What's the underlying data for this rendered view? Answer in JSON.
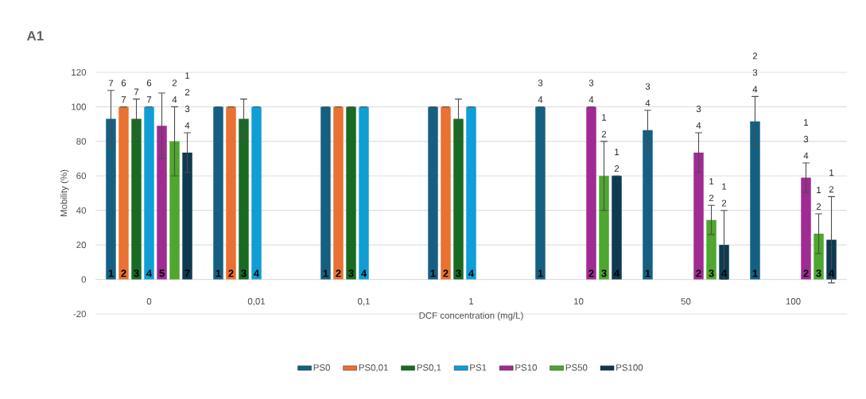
{
  "chart_data": {
    "type": "bar",
    "title": "A1",
    "xlabel": "DCF concentration (mg/L)",
    "ylabel": "Mobility (%)",
    "categories": [
      "0",
      "0,01",
      "0,1",
      "1",
      "10",
      "50",
      "100"
    ],
    "ylim": [
      -20,
      120
    ],
    "yticks": [
      -20,
      0,
      20,
      40,
      60,
      80,
      100,
      120
    ],
    "grid": "y",
    "legend": "bottom",
    "series": [
      {
        "name": "PS0",
        "color": "#156082",
        "values": [
          93,
          100,
          100,
          100,
          100,
          86.5,
          91.5
        ],
        "errors": [
          16.5,
          0,
          0,
          0,
          0,
          11.5,
          14.5
        ]
      },
      {
        "name": "PS0,01",
        "color": "#e97132",
        "values": [
          100,
          100,
          100,
          100,
          null,
          null,
          null
        ],
        "errors": [
          0,
          0,
          0,
          0,
          null,
          null,
          null
        ]
      },
      {
        "name": "PS0,1",
        "color": "#196b24",
        "values": [
          93,
          93,
          100,
          93,
          null,
          null,
          null
        ],
        "errors": [
          11.5,
          11.5,
          0,
          11.5,
          null,
          null,
          null
        ]
      },
      {
        "name": "PS1",
        "color": "#0f9ed5",
        "values": [
          100,
          100,
          100,
          100,
          null,
          null,
          null
        ],
        "errors": [
          0,
          0,
          0,
          0,
          null,
          null,
          null
        ]
      },
      {
        "name": "PS10",
        "color": "#a02b93",
        "values": [
          89,
          null,
          null,
          null,
          100,
          73.5,
          59
        ],
        "errors": [
          19,
          null,
          null,
          null,
          0,
          11.5,
          8.5
        ]
      },
      {
        "name": "PS50",
        "color": "#4ea72e",
        "values": [
          80,
          null,
          null,
          null,
          60,
          34.5,
          26.5
        ],
        "errors": [
          20,
          null,
          null,
          null,
          20,
          8.5,
          11.5
        ]
      },
      {
        "name": "PS100",
        "color": "#0e3a52",
        "values": [
          73.5,
          null,
          null,
          null,
          60,
          20,
          23
        ],
        "errors": [
          11.5,
          null,
          null,
          null,
          0,
          20,
          25
        ]
      }
    ],
    "annotations": [
      "1",
      "1",
      "1",
      "1",
      "1",
      "1",
      "1",
      "2",
      "2",
      "2",
      "2",
      "3",
      "3",
      "3",
      "3",
      "4",
      "4",
      "4",
      "4",
      "5",
      "2",
      "2",
      "2",
      null,
      "3",
      "3",
      "3",
      "7",
      "4",
      "4",
      "4",
      "7",
      null,
      null,
      null,
      "3 4",
      "3 4",
      "2 3 4",
      "6 7",
      null,
      null,
      null,
      "7",
      null,
      null,
      null,
      "6 7",
      null,
      null,
      null,
      null,
      "3 4",
      "3 4",
      "1 3 4",
      "2 4",
      "1 2",
      "1 2",
      "1 2",
      "1 2 3 4",
      "1 2",
      "1 2",
      "1 2"
    ]
  }
}
